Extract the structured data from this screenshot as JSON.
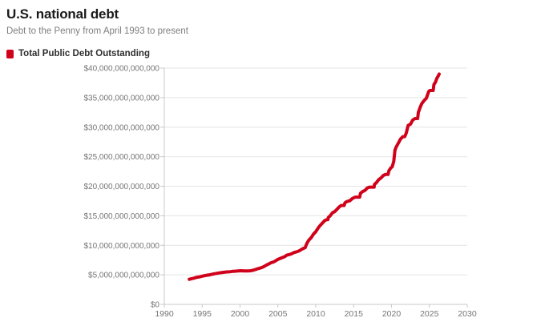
{
  "header": {
    "title": "U.S. national debt",
    "subtitle": "Debt to the Penny from April 1993 to present"
  },
  "legend": {
    "label": "Total Public Debt Outstanding",
    "color": "#d0021b"
  },
  "theme": {
    "line_color": "#d0021b",
    "grid_color": "#e4e4e4",
    "axis_color": "#c9c9c9",
    "tick_text_color": "#757575"
  },
  "chart_data": {
    "type": "line",
    "title": "U.S. national debt",
    "subtitle": "Debt to the Penny from April 1993 to present",
    "value_unit": "USD trillions",
    "xlim": [
      1990,
      2030
    ],
    "ylim": [
      0,
      40
    ],
    "grid": true,
    "legend_position": "top-left",
    "x_ticks": [
      {
        "value": 1990,
        "label": "1990"
      },
      {
        "value": 1995,
        "label": "1995"
      },
      {
        "value": 2000,
        "label": "2000"
      },
      {
        "value": 2005,
        "label": "2005"
      },
      {
        "value": 2010,
        "label": "2010"
      },
      {
        "value": 2015,
        "label": "2015"
      },
      {
        "value": 2020,
        "label": "2020"
      },
      {
        "value": 2025,
        "label": "2025"
      },
      {
        "value": 2030,
        "label": "2030"
      }
    ],
    "y_ticks": [
      {
        "value": 0,
        "label": "$0"
      },
      {
        "value": 5,
        "label": "$5,000,000,000,000"
      },
      {
        "value": 10,
        "label": "$10,000,000,000,000"
      },
      {
        "value": 15,
        "label": "$15,000,000,000,000"
      },
      {
        "value": 20,
        "label": "$20,000,000,000,000"
      },
      {
        "value": 25,
        "label": "$25,000,000,000,000"
      },
      {
        "value": 30,
        "label": "$30,000,000,000,000"
      },
      {
        "value": 35,
        "label": "$35,000,000,000,000"
      },
      {
        "value": 40,
        "label": "$40,000,000,000,000"
      }
    ],
    "series": [
      {
        "name": "Total Public Debt Outstanding",
        "color": "#d0021b",
        "x": [
          1993.3,
          1993.6,
          1993.9,
          1994.2,
          1994.5,
          1994.8,
          1995.1,
          1995.4,
          1995.7,
          1996.0,
          1996.3,
          1996.6,
          1996.9,
          1997.2,
          1997.5,
          1997.8,
          1998.1,
          1998.4,
          1998.7,
          1999.0,
          1999.3,
          1999.6,
          1999.9,
          2000.2,
          2000.5,
          2000.8,
          2001.1,
          2001.4,
          2001.7,
          2002.0,
          2002.3,
          2002.6,
          2002.9,
          2003.2,
          2003.5,
          2003.8,
          2004.1,
          2004.4,
          2004.7,
          2005.0,
          2005.3,
          2005.6,
          2005.9,
          2006.2,
          2006.5,
          2006.8,
          2007.1,
          2007.4,
          2007.7,
          2008.0,
          2008.3,
          2008.6,
          2008.75,
          2008.9,
          2009.1,
          2009.4,
          2009.7,
          2010.0,
          2010.3,
          2010.6,
          2010.9,
          2011.2,
          2011.45,
          2011.6,
          2011.65,
          2011.9,
          2012.2,
          2012.5,
          2012.8,
          2013.1,
          2013.35,
          2013.75,
          2013.85,
          2014.1,
          2014.5,
          2014.8,
          2015.1,
          2015.25,
          2015.8,
          2015.9,
          2016.2,
          2016.5,
          2016.8,
          2017.1,
          2017.7,
          2017.75,
          2018.0,
          2018.3,
          2018.6,
          2018.9,
          2019.2,
          2019.55,
          2019.65,
          2019.9,
          2020.1,
          2020.3,
          2020.45,
          2020.6,
          2020.9,
          2021.2,
          2021.5,
          2021.75,
          2021.95,
          2022.2,
          2022.5,
          2022.8,
          2023.1,
          2023.45,
          2023.55,
          2023.8,
          2024.0,
          2024.3,
          2024.6,
          2024.9,
          2025.05,
          2025.5,
          2025.6,
          2025.8,
          2026.0,
          2026.15,
          2026.3
        ],
        "values": [
          4.24,
          4.35,
          4.44,
          4.55,
          4.62,
          4.7,
          4.8,
          4.88,
          4.95,
          5.0,
          5.1,
          5.18,
          5.25,
          5.32,
          5.37,
          5.42,
          5.48,
          5.5,
          5.53,
          5.59,
          5.62,
          5.64,
          5.68,
          5.69,
          5.67,
          5.66,
          5.66,
          5.69,
          5.77,
          5.88,
          6.02,
          6.13,
          6.25,
          6.43,
          6.67,
          6.85,
          7.05,
          7.17,
          7.38,
          7.62,
          7.78,
          7.93,
          8.08,
          8.35,
          8.43,
          8.56,
          8.77,
          8.87,
          9.0,
          9.2,
          9.44,
          9.6,
          10.1,
          10.5,
          10.9,
          11.3,
          11.9,
          12.3,
          12.9,
          13.4,
          13.8,
          14.2,
          14.34,
          14.34,
          14.7,
          15.0,
          15.5,
          15.7,
          16.1,
          16.5,
          16.74,
          16.74,
          17.2,
          17.4,
          17.55,
          17.9,
          18.1,
          18.15,
          18.15,
          18.8,
          19.1,
          19.3,
          19.7,
          19.85,
          19.85,
          20.3,
          20.6,
          21.1,
          21.4,
          21.8,
          22.0,
          22.0,
          22.6,
          23.1,
          23.3,
          24.2,
          26.1,
          26.6,
          27.3,
          28.0,
          28.4,
          28.4,
          29.0,
          30.3,
          30.5,
          31.2,
          31.46,
          31.46,
          32.5,
          33.4,
          34.0,
          34.5,
          34.9,
          36.0,
          36.2,
          36.2,
          37.2,
          37.6,
          38.3,
          38.6,
          39.0
        ]
      }
    ]
  }
}
